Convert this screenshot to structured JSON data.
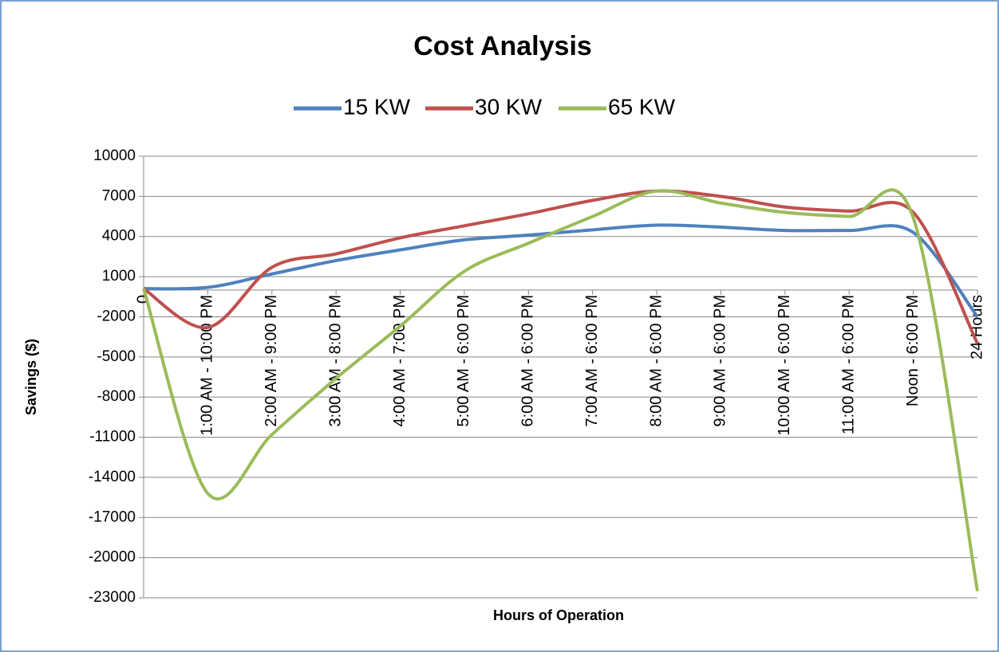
{
  "chart_data": {
    "type": "line",
    "title": "Cost Analysis",
    "x_label": "Hours of Operation",
    "y_label": "Savings ($)",
    "categories": [
      "0",
      "1:00 AM - 10:00 PM",
      "2:00 AM - 9:00 PM",
      "3:00 AM - 8:00 PM",
      "4:00 AM - 7:00 PM",
      "5:00 AM - 6:00 PM",
      "6:00 AM - 6:00 PM",
      "7:00 AM - 6:00 PM",
      "8:00 AM - 6:00 PM",
      "9:00 AM - 6:00 PM",
      "10:00 AM - 6:00 PM",
      "11:00 AM - 6:00 PM",
      "Noon - 6:00 PM",
      "24 Hours"
    ],
    "series": [
      {
        "name": "15 KW",
        "color": "#4f81bd",
        "values": [
          100,
          200,
          1200,
          2200,
          3000,
          3750,
          4100,
          4500,
          4850,
          4700,
          4450,
          4450,
          4300,
          -2000
        ]
      },
      {
        "name": "30 KW",
        "color": "#c0504d",
        "values": [
          100,
          -2800,
          1700,
          2700,
          3900,
          4800,
          5700,
          6700,
          7400,
          7000,
          6200,
          5900,
          5800,
          -4000
        ]
      },
      {
        "name": "65 KW",
        "color": "#9bbb59",
        "values": [
          100,
          -15200,
          -10800,
          -6600,
          -2700,
          1400,
          3500,
          5500,
          7400,
          6500,
          5800,
          5500,
          5400,
          -22500
        ]
      }
    ],
    "ylim": [
      -23000,
      10000
    ],
    "yticks": [
      10000,
      7000,
      4000,
      1000,
      -2000,
      -5000,
      -8000,
      -11000,
      -14000,
      -17000,
      -20000,
      -23000
    ],
    "grid": true,
    "legend": "top",
    "smooth": true
  }
}
